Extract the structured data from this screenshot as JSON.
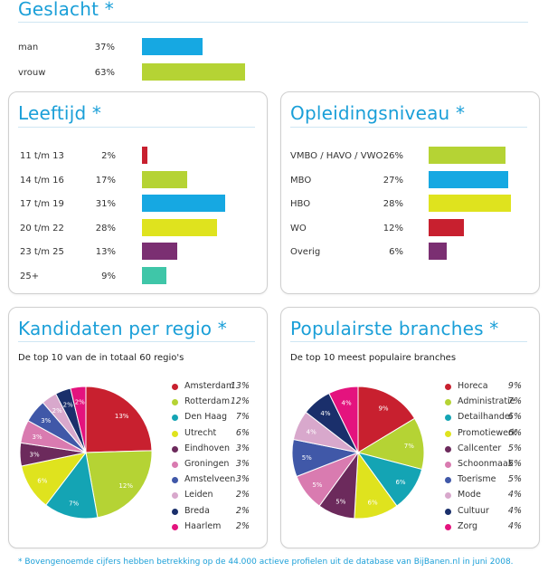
{
  "colors": {
    "accent": "#1a9fd8",
    "palette": [
      "#c8202f",
      "#b5d334",
      "#14a4b4",
      "#dfe31e",
      "#6c2a5c",
      "#d97bb0",
      "#1a2f6b",
      "#d8a8cc",
      "#4058a8",
      "#e4137e",
      "#16a8e2",
      "#d9e31e",
      "#3fc6a8"
    ]
  },
  "gender": {
    "title": "Geslacht *",
    "rows": [
      {
        "label": "man",
        "pct": "37%",
        "value": 37,
        "color": "#16a8e2"
      },
      {
        "label": "vrouw",
        "pct": "63%",
        "value": 63,
        "color": "#b5d334"
      }
    ]
  },
  "age": {
    "title": "Leeftijd *",
    "rows": [
      {
        "label": "11 t/m 13",
        "pct": "2%",
        "value": 2,
        "color": "#c8202f"
      },
      {
        "label": "14 t/m 16",
        "pct": "17%",
        "value": 17,
        "color": "#b5d334"
      },
      {
        "label": "17 t/m 19",
        "pct": "31%",
        "value": 31,
        "color": "#16a8e2"
      },
      {
        "label": "20 t/m 22",
        "pct": "28%",
        "value": 28,
        "color": "#dfe31e"
      },
      {
        "label": "23 t/m 25",
        "pct": "13%",
        "value": 13,
        "color": "#7b2f72"
      },
      {
        "label": "25+",
        "pct": "9%",
        "value": 9,
        "color": "#3fc6a8"
      }
    ]
  },
  "education": {
    "title": "Opleidingsniveau *",
    "rows": [
      {
        "label": "VMBO / HAVO / VWO",
        "pct": "26%",
        "value": 26,
        "color": "#b5d334"
      },
      {
        "label": "MBO",
        "pct": "27%",
        "value": 27,
        "color": "#16a8e2"
      },
      {
        "label": "HBO",
        "pct": "28%",
        "value": 28,
        "color": "#dfe31e"
      },
      {
        "label": "WO",
        "pct": "12%",
        "value": 12,
        "color": "#c8202f"
      },
      {
        "label": "Overig",
        "pct": "6%",
        "value": 6,
        "color": "#7b2f72"
      }
    ]
  },
  "regions": {
    "title": "Kandidaten per regio *",
    "subtitle": "De top 10 van de in totaal 60 regio's",
    "items": [
      {
        "label": "Amsterdam",
        "pct": "13%",
        "value": 13,
        "color": "#c8202f"
      },
      {
        "label": "Rotterdam",
        "pct": "12%",
        "value": 12,
        "color": "#b5d334"
      },
      {
        "label": "Den Haag",
        "pct": "7%",
        "value": 7,
        "color": "#14a4b4"
      },
      {
        "label": "Utrecht",
        "pct": "6%",
        "value": 6,
        "color": "#dfe31e"
      },
      {
        "label": "Eindhoven",
        "pct": "3%",
        "value": 3,
        "color": "#6c2a5c"
      },
      {
        "label": "Groningen",
        "pct": "3%",
        "value": 3,
        "color": "#d97bb0"
      },
      {
        "label": "Amstelveen",
        "pct": "3%",
        "value": 3,
        "color": "#4058a8"
      },
      {
        "label": "Leiden",
        "pct": "2%",
        "value": 2,
        "color": "#d8a8cc"
      },
      {
        "label": "Breda",
        "pct": "2%",
        "value": 2,
        "color": "#1a2f6b"
      },
      {
        "label": "Haarlem",
        "pct": "2%",
        "value": 2,
        "color": "#e4137e"
      }
    ]
  },
  "branches": {
    "title": "Populairste branches *",
    "subtitle": "De top 10 meest populaire branches",
    "items": [
      {
        "label": "Horeca",
        "pct": "9%",
        "value": 9,
        "color": "#c8202f"
      },
      {
        "label": "Administratie",
        "pct": "7%",
        "value": 7,
        "color": "#b5d334"
      },
      {
        "label": "Detailhandel",
        "pct": "6%",
        "value": 6,
        "color": "#14a4b4"
      },
      {
        "label": "Promotiewerk",
        "pct": "6%",
        "value": 6,
        "color": "#dfe31e"
      },
      {
        "label": "Callcenter",
        "pct": "5%",
        "value": 5,
        "color": "#6c2a5c"
      },
      {
        "label": "Schoonmaak",
        "pct": "5%",
        "value": 5,
        "color": "#d97bb0"
      },
      {
        "label": "Toerisme",
        "pct": "5%",
        "value": 5,
        "color": "#4058a8"
      },
      {
        "label": "Mode",
        "pct": "4%",
        "value": 4,
        "color": "#d8a8cc"
      },
      {
        "label": "Cultuur",
        "pct": "4%",
        "value": 4,
        "color": "#1a2f6b"
      },
      {
        "label": "Zorg",
        "pct": "4%",
        "value": 4,
        "color": "#e4137e"
      }
    ]
  },
  "footnote": "* Bovengenoemde cijfers hebben betrekking op de 44.000 actieve profielen uit de database van BijBanen.nl in juni 2008.",
  "chart_data": [
    {
      "type": "bar",
      "title": "Geslacht *",
      "categories": [
        "man",
        "vrouw"
      ],
      "values": [
        37,
        63
      ]
    },
    {
      "type": "bar",
      "title": "Leeftijd *",
      "categories": [
        "11 t/m 13",
        "14 t/m 16",
        "17 t/m 19",
        "20 t/m 22",
        "23 t/m 25",
        "25+"
      ],
      "values": [
        2,
        17,
        31,
        28,
        13,
        9
      ]
    },
    {
      "type": "bar",
      "title": "Opleidingsniveau *",
      "categories": [
        "VMBO / HAVO / VWO",
        "MBO",
        "HBO",
        "WO",
        "Overig"
      ],
      "values": [
        26,
        27,
        28,
        12,
        6
      ]
    },
    {
      "type": "pie",
      "title": "Kandidaten per regio *",
      "categories": [
        "Amsterdam",
        "Rotterdam",
        "Den Haag",
        "Utrecht",
        "Eindhoven",
        "Groningen",
        "Amstelveen",
        "Leiden",
        "Breda",
        "Haarlem"
      ],
      "values": [
        13,
        12,
        7,
        6,
        3,
        3,
        3,
        2,
        2,
        2
      ]
    },
    {
      "type": "pie",
      "title": "Populairste branches *",
      "categories": [
        "Horeca",
        "Administratie",
        "Detailhandel",
        "Promotiewerk",
        "Callcenter",
        "Schoonmaak",
        "Toerisme",
        "Mode",
        "Cultuur",
        "Zorg"
      ],
      "values": [
        9,
        7,
        6,
        6,
        5,
        5,
        5,
        4,
        4,
        4
      ]
    }
  ]
}
